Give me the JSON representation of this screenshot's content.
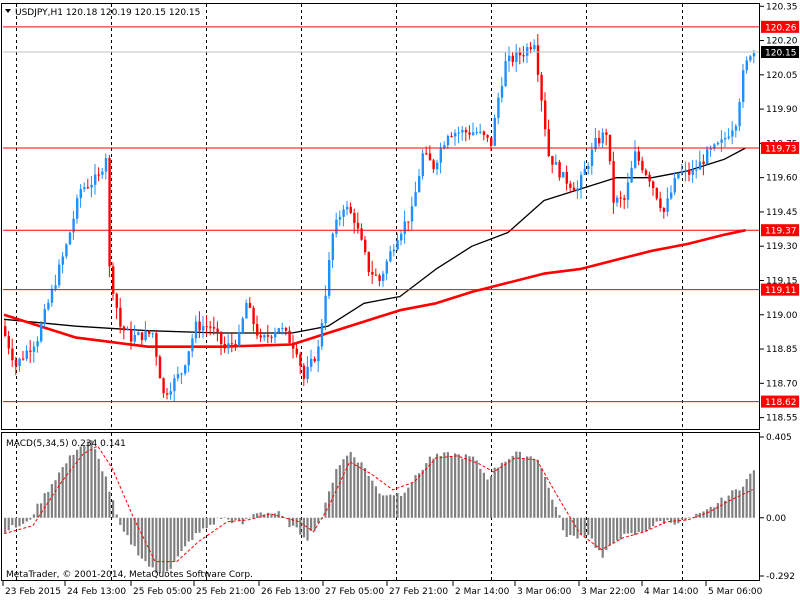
{
  "chart_data": {
    "type": "candlestick",
    "symbol": "USDJPY",
    "timeframe": "H1",
    "title": "USDJPY,H1  120.18 120.19 120.15 120.15",
    "ohlc_current": {
      "open": 120.18,
      "high": 120.19,
      "low": 120.15,
      "close": 120.15
    },
    "price_axis": {
      "ylim": [
        118.5,
        120.36
      ],
      "ticks": [
        "120.35",
        "120.20",
        "120.05",
        "119.90",
        "119.75",
        "119.60",
        "119.45",
        "119.30",
        "119.15",
        "119.00",
        "118.85",
        "118.70",
        "118.55"
      ],
      "tick_values": [
        120.35,
        120.2,
        120.05,
        119.9,
        119.75,
        119.6,
        119.45,
        119.3,
        119.15,
        119.0,
        118.85,
        118.7,
        118.55
      ]
    },
    "time_axis": {
      "labels": [
        "23 Feb 2015",
        "24 Feb 13:00",
        "25 Feb 05:00",
        "25 Feb 21:00",
        "26 Feb 13:00",
        "27 Feb 05:00",
        "27 Feb 21:00",
        "2 Mar 14:00",
        "3 Mar 06:00",
        "3 Mar 22:00",
        "4 Mar 14:00",
        "5 Mar 06:00"
      ],
      "bar_count": 176
    },
    "horizontal_levels": [
      {
        "label": "120.26",
        "value": 120.26,
        "color": "#ff0000",
        "tag": "red"
      },
      {
        "label": "119.73",
        "value": 119.73,
        "color": "#ff0000",
        "tag": "red"
      },
      {
        "label": "119.37",
        "value": 119.37,
        "color": "#ff0000",
        "tag": "red"
      },
      {
        "label": "119.11",
        "value": 119.11,
        "color": "#ff0000",
        "tag": "red"
      },
      {
        "label": "118.62",
        "value": 118.62,
        "color": "#ff0000",
        "tag": "red"
      }
    ],
    "bid_line": {
      "label": "120.15",
      "value": 120.15,
      "color": "#c0c0c0"
    },
    "price_path_anchors": [
      [
        0,
        118.95
      ],
      [
        4,
        118.78
      ],
      [
        10,
        118.9
      ],
      [
        18,
        119.3
      ],
      [
        22,
        119.55
      ],
      [
        27,
        119.6
      ],
      [
        29,
        119.7
      ],
      [
        30,
        119.2
      ],
      [
        33,
        118.95
      ],
      [
        36,
        118.9
      ],
      [
        42,
        118.92
      ],
      [
        45,
        118.65
      ],
      [
        50,
        118.75
      ],
      [
        54,
        118.95
      ],
      [
        58,
        118.95
      ],
      [
        62,
        118.85
      ],
      [
        66,
        118.9
      ],
      [
        68,
        119.05
      ],
      [
        72,
        118.88
      ],
      [
        77,
        118.95
      ],
      [
        82,
        118.85
      ],
      [
        84,
        118.72
      ],
      [
        88,
        118.85
      ],
      [
        90,
        119.1
      ],
      [
        92,
        119.35
      ],
      [
        95,
        119.48
      ],
      [
        98,
        119.42
      ],
      [
        102,
        119.2
      ],
      [
        105,
        119.15
      ],
      [
        110,
        119.35
      ],
      [
        114,
        119.45
      ],
      [
        117,
        119.7
      ],
      [
        120,
        119.65
      ],
      [
        124,
        119.8
      ],
      [
        128,
        119.8
      ],
      [
        132,
        119.8
      ],
      [
        136,
        119.75
      ],
      [
        138,
        119.95
      ],
      [
        140,
        120.1
      ],
      [
        145,
        120.15
      ],
      [
        148,
        120.2
      ],
      [
        150,
        119.95
      ],
      [
        152,
        119.7
      ],
      [
        156,
        119.6
      ],
      [
        160,
        119.55
      ],
      [
        165,
        119.75
      ],
      [
        168,
        119.8
      ],
      [
        170,
        119.5
      ],
      [
        173,
        119.5
      ],
      [
        176,
        119.7
      ],
      [
        180,
        119.6
      ],
      [
        184,
        119.45
      ],
      [
        188,
        119.62
      ],
      [
        192,
        119.62
      ],
      [
        196,
        119.7
      ],
      [
        200,
        119.75
      ],
      [
        204,
        119.85
      ],
      [
        206,
        120.05
      ],
      [
        208,
        120.15
      ]
    ],
    "moving_averages": [
      {
        "id": "ma-black",
        "color": "#000000",
        "width": 1.3,
        "points": [
          [
            0,
            118.98
          ],
          [
            20,
            118.95
          ],
          [
            40,
            118.93
          ],
          [
            60,
            118.92
          ],
          [
            80,
            118.92
          ],
          [
            90,
            118.95
          ],
          [
            100,
            119.05
          ],
          [
            110,
            119.08
          ],
          [
            120,
            119.2
          ],
          [
            130,
            119.3
          ],
          [
            140,
            119.36
          ],
          [
            150,
            119.5
          ],
          [
            160,
            119.55
          ],
          [
            170,
            119.6
          ],
          [
            180,
            119.6
          ],
          [
            190,
            119.63
          ],
          [
            200,
            119.68
          ],
          [
            206,
            119.73
          ]
        ]
      },
      {
        "id": "ma-red",
        "color": "#ff0000",
        "width": 2.6,
        "points": [
          [
            0,
            119.0
          ],
          [
            20,
            118.9
          ],
          [
            40,
            118.86
          ],
          [
            60,
            118.86
          ],
          [
            80,
            118.87
          ],
          [
            90,
            118.92
          ],
          [
            100,
            118.97
          ],
          [
            110,
            119.02
          ],
          [
            120,
            119.05
          ],
          [
            130,
            119.1
          ],
          [
            140,
            119.14
          ],
          [
            150,
            119.18
          ],
          [
            160,
            119.2
          ],
          [
            170,
            119.24
          ],
          [
            180,
            119.28
          ],
          [
            190,
            119.31
          ],
          [
            200,
            119.35
          ],
          [
            206,
            119.37
          ]
        ]
      }
    ],
    "macd": {
      "label": "MACD(5,34,5) 0.234 0.141",
      "ylim": [
        -0.292,
        0.405
      ],
      "ticks": [
        "0.405",
        "0.00",
        "-0.292"
      ],
      "tick_values": [
        0.405,
        0.0,
        -0.292
      ],
      "histogram_anchors": [
        [
          0,
          -0.06
        ],
        [
          6,
          -0.03
        ],
        [
          14,
          0.2
        ],
        [
          20,
          0.35
        ],
        [
          24,
          0.38
        ],
        [
          28,
          0.2
        ],
        [
          32,
          -0.05
        ],
        [
          38,
          -0.2
        ],
        [
          42,
          -0.28
        ],
        [
          46,
          -0.25
        ],
        [
          52,
          -0.1
        ],
        [
          60,
          0.0
        ],
        [
          66,
          -0.03
        ],
        [
          70,
          0.03
        ],
        [
          76,
          0.02
        ],
        [
          80,
          -0.05
        ],
        [
          84,
          -0.1
        ],
        [
          88,
          0.0
        ],
        [
          92,
          0.25
        ],
        [
          96,
          0.33
        ],
        [
          100,
          0.25
        ],
        [
          104,
          0.12
        ],
        [
          110,
          0.12
        ],
        [
          114,
          0.2
        ],
        [
          118,
          0.3
        ],
        [
          124,
          0.32
        ],
        [
          130,
          0.3
        ],
        [
          134,
          0.2
        ],
        [
          138,
          0.28
        ],
        [
          142,
          0.32
        ],
        [
          148,
          0.3
        ],
        [
          152,
          0.1
        ],
        [
          156,
          -0.1
        ],
        [
          162,
          -0.08
        ],
        [
          166,
          -0.2
        ],
        [
          170,
          -0.1
        ],
        [
          176,
          -0.08
        ],
        [
          182,
          -0.02
        ],
        [
          188,
          -0.02
        ],
        [
          194,
          0.02
        ],
        [
          200,
          0.1
        ],
        [
          204,
          0.15
        ],
        [
          208,
          0.234
        ]
      ],
      "signal_anchors": [
        [
          0,
          -0.08
        ],
        [
          8,
          -0.04
        ],
        [
          16,
          0.18
        ],
        [
          22,
          0.32
        ],
        [
          26,
          0.36
        ],
        [
          30,
          0.25
        ],
        [
          36,
          0.0
        ],
        [
          42,
          -0.22
        ],
        [
          48,
          -0.22
        ],
        [
          54,
          -0.12
        ],
        [
          62,
          -0.02
        ],
        [
          68,
          -0.01
        ],
        [
          74,
          0.02
        ],
        [
          82,
          -0.02
        ],
        [
          86,
          -0.07
        ],
        [
          90,
          0.05
        ],
        [
          96,
          0.28
        ],
        [
          102,
          0.22
        ],
        [
          108,
          0.14
        ],
        [
          114,
          0.18
        ],
        [
          120,
          0.3
        ],
        [
          126,
          0.31
        ],
        [
          132,
          0.27
        ],
        [
          136,
          0.23
        ],
        [
          142,
          0.3
        ],
        [
          148,
          0.29
        ],
        [
          154,
          0.1
        ],
        [
          160,
          -0.08
        ],
        [
          166,
          -0.16
        ],
        [
          172,
          -0.1
        ],
        [
          178,
          -0.07
        ],
        [
          184,
          -0.02
        ],
        [
          190,
          -0.01
        ],
        [
          196,
          0.03
        ],
        [
          202,
          0.09
        ],
        [
          208,
          0.141
        ]
      ],
      "hist_color": "#808080",
      "signal_color": "#ff0000"
    },
    "copyright": "MetaTrader, © 2001-2014, MetaQuotes Software Corp.",
    "colors": {
      "bull": "#1e90ff",
      "bear": "#ff0000",
      "grid": "#000000",
      "level": "#ff0000"
    }
  }
}
